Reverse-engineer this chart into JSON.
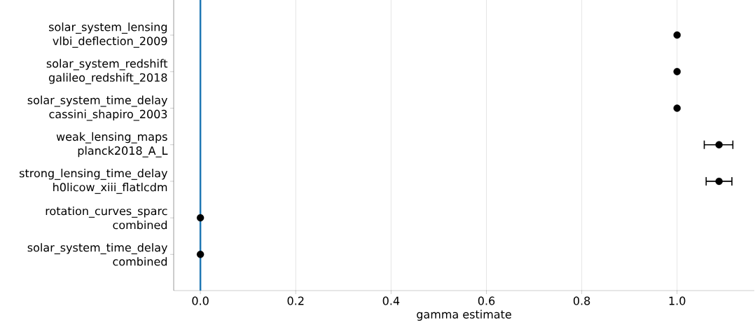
{
  "chart_data": {
    "type": "scatter",
    "orientation": "horizontal",
    "xlabel": "gamma estimate",
    "categories": [
      "solar_system_lensing vlbi_deflection_2009",
      "solar_system_redshift galileo_redshift_2018",
      "solar_system_time_delay cassini_shapiro_2003",
      "weak_lensing_maps planck2018_A_L",
      "strong_lensing_time_delay h0licow_xiii_flatlcdm",
      "rotation_curves_sparc combined",
      "solar_system_time_delay combined"
    ],
    "values": [
      1.0,
      1.0,
      1.0,
      1.088,
      1.088,
      0.0,
      0.0
    ],
    "errors": [
      null,
      null,
      null,
      [
        1.057,
        1.117
      ],
      [
        1.061,
        1.115
      ],
      null,
      null
    ],
    "color": "#000000",
    "marker": "circle",
    "xlim": [
      -0.056,
      1.162
    ],
    "xticks": [
      {
        "value": 0,
        "label": "0.0"
      },
      {
        "value": 0.2,
        "label": "0.2"
      },
      {
        "value": 0.4,
        "label": "0.4"
      },
      {
        "value": 0.6,
        "label": "0.6"
      },
      {
        "value": 0.8,
        "label": "0.8"
      },
      {
        "value": 1.0,
        "label": "1.0"
      }
    ],
    "grid": "x",
    "ref_lines": [
      {
        "axis": "x",
        "value": 0,
        "color": "#1f77b4"
      }
    ]
  }
}
